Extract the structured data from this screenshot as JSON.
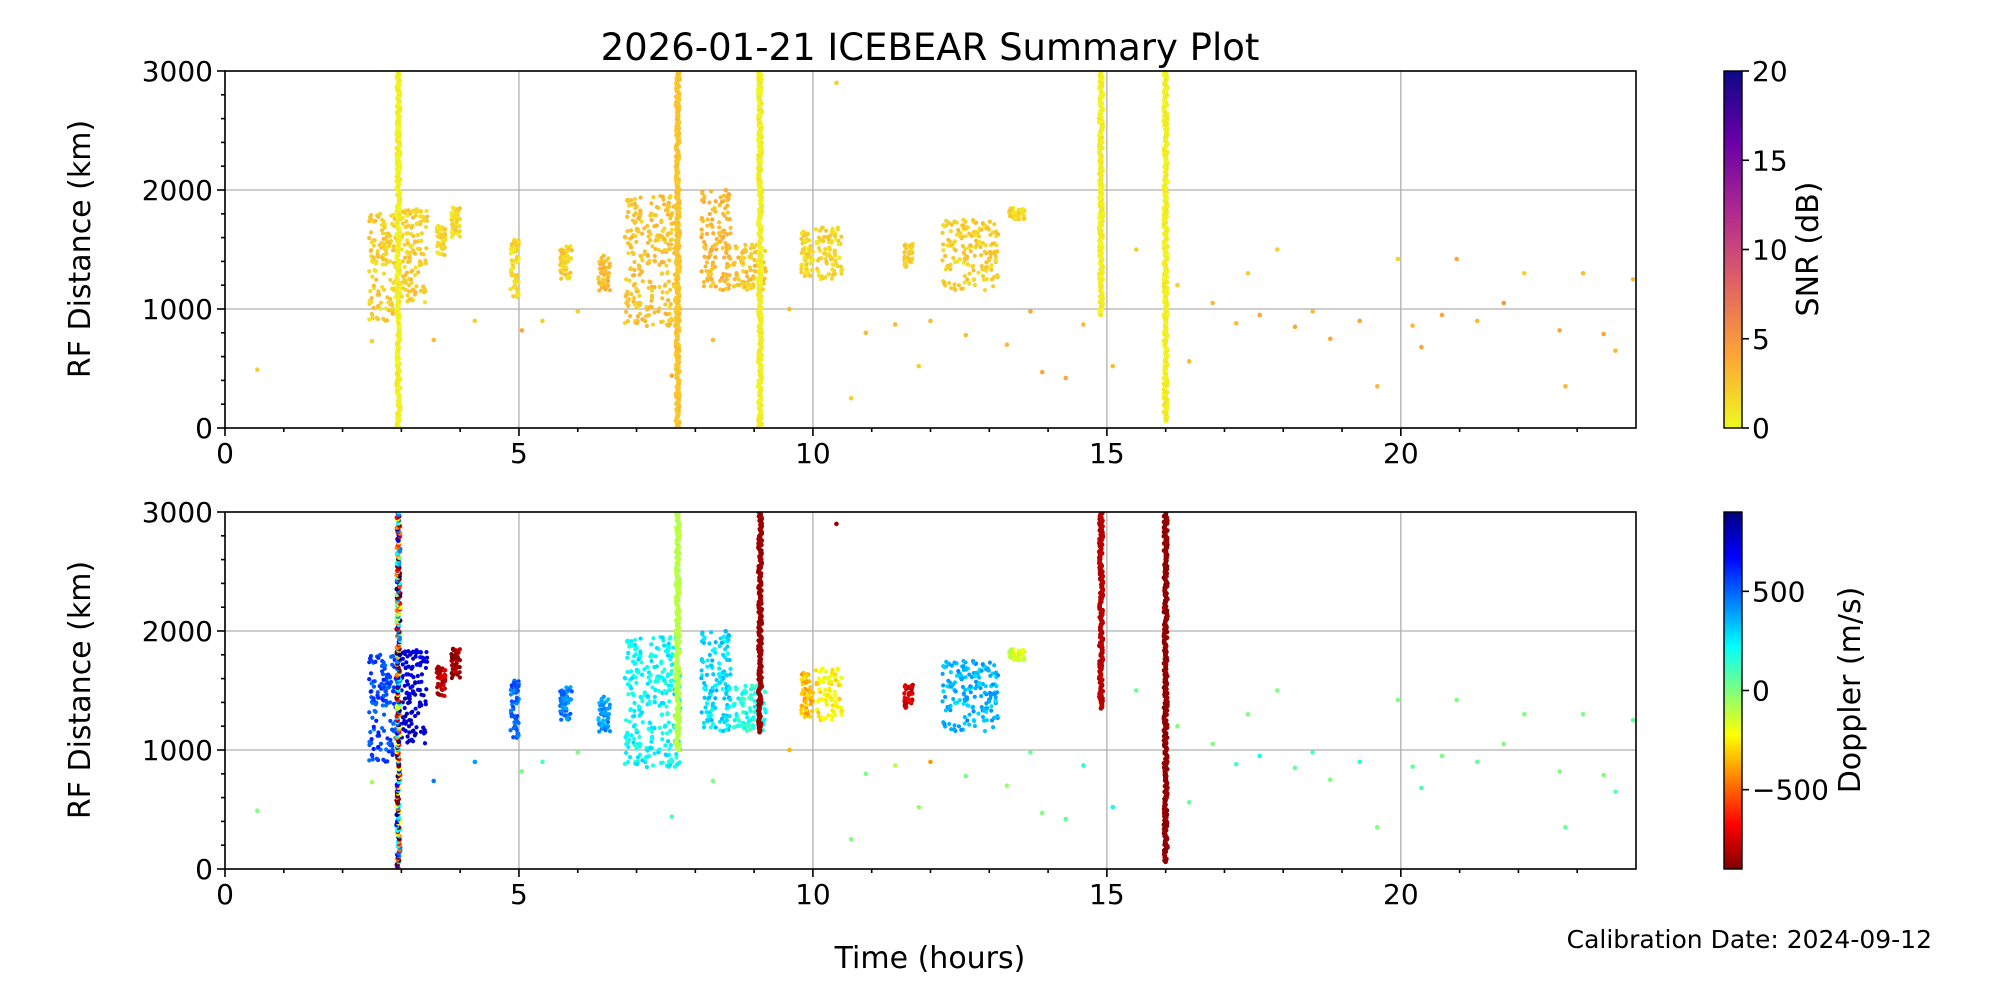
{
  "figure": {
    "title": "2026-01-21 ICEBEAR Summary Plot",
    "xlabel": "Time (hours)",
    "footnote": "Calibration Date: 2024-09-12"
  },
  "chart_data": [
    {
      "type": "scatter",
      "panel": "top",
      "title": "2026-01-21 ICEBEAR Summary Plot",
      "xlabel": "",
      "ylabel": "RF Distance (km)",
      "xlim": [
        0,
        24
      ],
      "ylim": [
        0,
        3000
      ],
      "xticks": [
        0,
        5,
        10,
        15,
        20
      ],
      "yticks": [
        0,
        1000,
        2000,
        3000
      ],
      "grid": true,
      "color_variable": "SNR (dB)",
      "colorbar": {
        "label": "SNR (dB)",
        "range": [
          0,
          20
        ],
        "ticks": [
          0,
          5,
          10,
          15,
          20
        ],
        "colormap": "plasma_r",
        "stops": [
          "#f0f921",
          "#fca636",
          "#e16462",
          "#b12a90",
          "#6a00a8",
          "#0d0887"
        ]
      },
      "clusters": [
        {
          "x": [
            2.45,
            2.95
          ],
          "y": [
            900,
            1800
          ],
          "c": 2
        },
        {
          "x": [
            3.0,
            3.45
          ],
          "y": [
            1050,
            1850
          ],
          "c": 2
        },
        {
          "x": [
            3.6,
            3.75
          ],
          "y": [
            1450,
            1700
          ],
          "c": 1.5
        },
        {
          "x": [
            3.85,
            4.0
          ],
          "y": [
            1600,
            1850
          ],
          "c": 1.5
        },
        {
          "x": [
            4.85,
            5.0
          ],
          "y": [
            1100,
            1600
          ],
          "c": 1.5
        },
        {
          "x": [
            5.7,
            5.9
          ],
          "y": [
            1250,
            1550
          ],
          "c": 2
        },
        {
          "x": [
            6.35,
            6.55
          ],
          "y": [
            1150,
            1450
          ],
          "c": 3
        },
        {
          "x": [
            6.8,
            7.75
          ],
          "y": [
            850,
            1950
          ],
          "c": 2.5
        },
        {
          "x": [
            8.1,
            8.6
          ],
          "y": [
            1150,
            2000
          ],
          "c": 3
        },
        {
          "x": [
            8.65,
            9.2
          ],
          "y": [
            1150,
            1550
          ],
          "c": 2.5
        },
        {
          "x": [
            9.8,
            10.0
          ],
          "y": [
            1250,
            1650
          ],
          "c": 1.5
        },
        {
          "x": [
            10.05,
            10.5
          ],
          "y": [
            1250,
            1700
          ],
          "c": 1.5
        },
        {
          "x": [
            11.55,
            11.7
          ],
          "y": [
            1350,
            1550
          ],
          "c": 2
        },
        {
          "x": [
            12.2,
            13.15
          ],
          "y": [
            1150,
            1750
          ],
          "c": 2
        },
        {
          "x": [
            13.3,
            13.6
          ],
          "y": [
            1750,
            1850
          ],
          "c": 1.5
        }
      ],
      "vertical_streaks": [
        {
          "x": 2.95,
          "y": [
            0,
            3000
          ],
          "c": 0.5
        },
        {
          "x": 7.7,
          "y": [
            0,
            3000
          ],
          "c": 2.5
        },
        {
          "x": 9.1,
          "y": [
            0,
            3000
          ],
          "c": 0.5
        },
        {
          "x": 14.9,
          "y": [
            950,
            3000
          ],
          "c": 0.5
        },
        {
          "x": 16.0,
          "y": [
            60,
            3000
          ],
          "c": 0.5
        }
      ],
      "scattered_points": [
        {
          "x": 0.55,
          "y": 490,
          "c": 2
        },
        {
          "x": 2.5,
          "y": 730,
          "c": 2
        },
        {
          "x": 3.55,
          "y": 740,
          "c": 3
        },
        {
          "x": 4.25,
          "y": 900,
          "c": 2
        },
        {
          "x": 5.05,
          "y": 820,
          "c": 4
        },
        {
          "x": 5.4,
          "y": 900,
          "c": 2
        },
        {
          "x": 6.0,
          "y": 980,
          "c": 2
        },
        {
          "x": 7.6,
          "y": 440,
          "c": 4
        },
        {
          "x": 8.3,
          "y": 740,
          "c": 3
        },
        {
          "x": 9.6,
          "y": 1000,
          "c": 3
        },
        {
          "x": 10.4,
          "y": 2900,
          "c": 2
        },
        {
          "x": 10.65,
          "y": 250,
          "c": 2
        },
        {
          "x": 10.9,
          "y": 800,
          "c": 3
        },
        {
          "x": 11.4,
          "y": 870,
          "c": 3
        },
        {
          "x": 11.8,
          "y": 520,
          "c": 2
        },
        {
          "x": 12.0,
          "y": 900,
          "c": 3
        },
        {
          "x": 12.6,
          "y": 780,
          "c": 3
        },
        {
          "x": 13.3,
          "y": 700,
          "c": 3
        },
        {
          "x": 13.7,
          "y": 980,
          "c": 4
        },
        {
          "x": 13.9,
          "y": 470,
          "c": 4
        },
        {
          "x": 14.3,
          "y": 420,
          "c": 4
        },
        {
          "x": 14.6,
          "y": 870,
          "c": 3
        },
        {
          "x": 15.1,
          "y": 520,
          "c": 3
        },
        {
          "x": 15.5,
          "y": 1500,
          "c": 2
        },
        {
          "x": 16.2,
          "y": 1200,
          "c": 2
        },
        {
          "x": 16.4,
          "y": 560,
          "c": 3
        },
        {
          "x": 16.8,
          "y": 1050,
          "c": 3
        },
        {
          "x": 17.2,
          "y": 880,
          "c": 3
        },
        {
          "x": 17.4,
          "y": 1300,
          "c": 2
        },
        {
          "x": 17.6,
          "y": 950,
          "c": 4
        },
        {
          "x": 17.9,
          "y": 1500,
          "c": 2
        },
        {
          "x": 18.2,
          "y": 850,
          "c": 4
        },
        {
          "x": 18.5,
          "y": 980,
          "c": 3
        },
        {
          "x": 18.8,
          "y": 750,
          "c": 4
        },
        {
          "x": 19.3,
          "y": 900,
          "c": 4
        },
        {
          "x": 19.6,
          "y": 350,
          "c": 3
        },
        {
          "x": 19.95,
          "y": 1420,
          "c": 2
        },
        {
          "x": 20.2,
          "y": 860,
          "c": 3
        },
        {
          "x": 20.35,
          "y": 680,
          "c": 4
        },
        {
          "x": 20.7,
          "y": 950,
          "c": 4
        },
        {
          "x": 20.95,
          "y": 1420,
          "c": 4
        },
        {
          "x": 21.3,
          "y": 900,
          "c": 3
        },
        {
          "x": 21.75,
          "y": 1050,
          "c": 5
        },
        {
          "x": 22.1,
          "y": 1300,
          "c": 2
        },
        {
          "x": 22.7,
          "y": 820,
          "c": 4
        },
        {
          "x": 22.8,
          "y": 350,
          "c": 3
        },
        {
          "x": 23.1,
          "y": 1300,
          "c": 3
        },
        {
          "x": 23.45,
          "y": 790,
          "c": 4
        },
        {
          "x": 23.65,
          "y": 650,
          "c": 3
        },
        {
          "x": 23.95,
          "y": 1250,
          "c": 3
        }
      ]
    },
    {
      "type": "scatter",
      "panel": "bottom",
      "title": "",
      "xlabel": "Time (hours)",
      "ylabel": "RF Distance (km)",
      "xlim": [
        0,
        24
      ],
      "ylim": [
        0,
        3000
      ],
      "xticks": [
        0,
        5,
        10,
        15,
        20
      ],
      "yticks": [
        0,
        1000,
        2000,
        3000
      ],
      "grid": true,
      "color_variable": "Doppler (m/s)",
      "colorbar": {
        "label": "Doppler (m/s)",
        "range": [
          -900,
          900
        ],
        "ticks": [
          -500,
          0,
          500
        ],
        "colormap": "jet_r",
        "stops": [
          "#7f0000",
          "#ff0000",
          "#ff7f00",
          "#ffff00",
          "#7fff7f",
          "#00ffff",
          "#007fff",
          "#0000ff",
          "#00007f"
        ]
      },
      "clusters": [
        {
          "x": [
            2.45,
            2.95
          ],
          "y": [
            900,
            1800
          ],
          "c": 550
        },
        {
          "x": [
            3.0,
            3.45
          ],
          "y": [
            1050,
            1850
          ],
          "c": 750
        },
        {
          "x": [
            3.6,
            3.75
          ],
          "y": [
            1450,
            1700
          ],
          "c": -800
        },
        {
          "x": [
            3.85,
            4.0
          ],
          "y": [
            1600,
            1850
          ],
          "c": -850
        },
        {
          "x": [
            4.85,
            5.0
          ],
          "y": [
            1100,
            1600
          ],
          "c": 500
        },
        {
          "x": [
            5.7,
            5.9
          ],
          "y": [
            1250,
            1550
          ],
          "c": 450
        },
        {
          "x": [
            6.35,
            6.55
          ],
          "y": [
            1150,
            1450
          ],
          "c": 400
        },
        {
          "x": [
            6.8,
            7.75
          ],
          "y": [
            850,
            1950
          ],
          "c": 220
        },
        {
          "x": [
            8.1,
            8.6
          ],
          "y": [
            1150,
            2000
          ],
          "c": 280
        },
        {
          "x": [
            8.65,
            9.2
          ],
          "y": [
            1150,
            1550
          ],
          "c": 180
        },
        {
          "x": [
            9.8,
            10.0
          ],
          "y": [
            1250,
            1650
          ],
          "c": -350
        },
        {
          "x": [
            10.05,
            10.5
          ],
          "y": [
            1250,
            1700
          ],
          "c": -250
        },
        {
          "x": [
            11.55,
            11.7
          ],
          "y": [
            1350,
            1550
          ],
          "c": -750
        },
        {
          "x": [
            12.2,
            13.15
          ],
          "y": [
            1150,
            1750
          ],
          "c": 350
        },
        {
          "x": [
            13.3,
            13.6
          ],
          "y": [
            1750,
            1850
          ],
          "c": -150
        }
      ],
      "vertical_streaks": [
        {
          "x": 2.95,
          "y": [
            0,
            3000
          ],
          "c": "mixed"
        },
        {
          "x": 7.7,
          "y": [
            1000,
            3000
          ],
          "c": -100
        },
        {
          "x": 9.1,
          "y": [
            1150,
            3000
          ],
          "c": -850
        },
        {
          "x": 14.9,
          "y": [
            1350,
            3000
          ],
          "c": -800
        },
        {
          "x": 16.0,
          "y": [
            60,
            3000
          ],
          "c": -870
        }
      ],
      "scattered_points": [
        {
          "x": 0.55,
          "y": 490,
          "c": 0
        },
        {
          "x": 2.5,
          "y": 730,
          "c": -50
        },
        {
          "x": 3.55,
          "y": 740,
          "c": 450
        },
        {
          "x": 4.25,
          "y": 900,
          "c": 400
        },
        {
          "x": 5.05,
          "y": 820,
          "c": 0
        },
        {
          "x": 5.4,
          "y": 900,
          "c": 100
        },
        {
          "x": 6.0,
          "y": 980,
          "c": 0
        },
        {
          "x": 7.6,
          "y": 440,
          "c": 100
        },
        {
          "x": 8.3,
          "y": 740,
          "c": 0
        },
        {
          "x": 9.6,
          "y": 1000,
          "c": -350
        },
        {
          "x": 10.4,
          "y": 2900,
          "c": -850
        },
        {
          "x": 10.65,
          "y": 250,
          "c": 0
        },
        {
          "x": 10.9,
          "y": 800,
          "c": 0
        },
        {
          "x": 11.4,
          "y": 870,
          "c": -100
        },
        {
          "x": 11.8,
          "y": 520,
          "c": -50
        },
        {
          "x": 12.0,
          "y": 900,
          "c": -400
        },
        {
          "x": 12.6,
          "y": 780,
          "c": 0
        },
        {
          "x": 13.3,
          "y": 700,
          "c": -50
        },
        {
          "x": 13.7,
          "y": 980,
          "c": 50
        },
        {
          "x": 13.9,
          "y": 470,
          "c": 0
        },
        {
          "x": 14.3,
          "y": 420,
          "c": 50
        },
        {
          "x": 14.6,
          "y": 870,
          "c": 150
        },
        {
          "x": 15.1,
          "y": 520,
          "c": 200
        },
        {
          "x": 15.5,
          "y": 1500,
          "c": 50
        },
        {
          "x": 16.2,
          "y": 1200,
          "c": 0
        },
        {
          "x": 16.4,
          "y": 560,
          "c": 50
        },
        {
          "x": 16.8,
          "y": 1050,
          "c": 0
        },
        {
          "x": 17.2,
          "y": 880,
          "c": 100
        },
        {
          "x": 17.4,
          "y": 1300,
          "c": 0
        },
        {
          "x": 17.6,
          "y": 950,
          "c": 200
        },
        {
          "x": 17.9,
          "y": 1500,
          "c": 0
        },
        {
          "x": 18.2,
          "y": 850,
          "c": 50
        },
        {
          "x": 18.5,
          "y": 980,
          "c": 100
        },
        {
          "x": 18.8,
          "y": 750,
          "c": 0
        },
        {
          "x": 19.3,
          "y": 900,
          "c": 150
        },
        {
          "x": 19.6,
          "y": 350,
          "c": 0
        },
        {
          "x": 19.95,
          "y": 1420,
          "c": 0
        },
        {
          "x": 20.2,
          "y": 860,
          "c": 50
        },
        {
          "x": 20.35,
          "y": 680,
          "c": 100
        },
        {
          "x": 20.7,
          "y": 950,
          "c": 0
        },
        {
          "x": 20.95,
          "y": 1420,
          "c": 0
        },
        {
          "x": 21.3,
          "y": 900,
          "c": 50
        },
        {
          "x": 21.75,
          "y": 1050,
          "c": 0
        },
        {
          "x": 22.1,
          "y": 1300,
          "c": 0
        },
        {
          "x": 22.7,
          "y": 820,
          "c": 0
        },
        {
          "x": 22.8,
          "y": 350,
          "c": 50
        },
        {
          "x": 23.1,
          "y": 1300,
          "c": 0
        },
        {
          "x": 23.45,
          "y": 790,
          "c": 0
        },
        {
          "x": 23.65,
          "y": 650,
          "c": 50
        },
        {
          "x": 23.95,
          "y": 1250,
          "c": 50
        }
      ]
    }
  ]
}
